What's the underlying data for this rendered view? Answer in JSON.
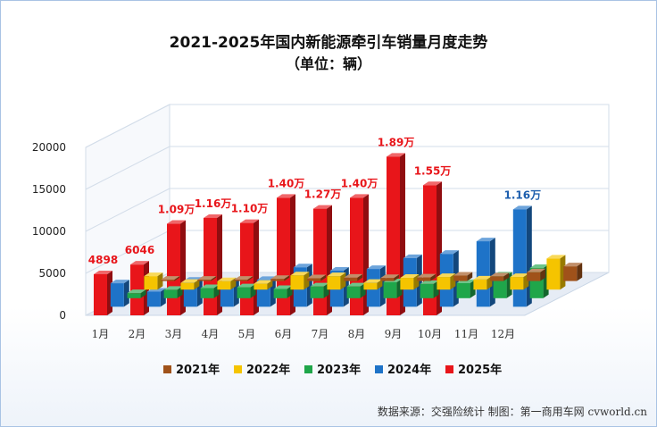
{
  "chart_data": {
    "type": "bar",
    "title": "2021-2025年国内新能源牵引车销量月度走势",
    "subtitle": "（单位：辆）",
    "categories": [
      "1月",
      "2月",
      "3月",
      "4月",
      "5月",
      "6月",
      "7月",
      "8月",
      "9月",
      "10月",
      "11月",
      "12月"
    ],
    "ylim": [
      0,
      20000
    ],
    "yticks": [
      "0",
      "5000",
      "10000",
      "15000",
      "20000"
    ],
    "series": [
      {
        "name": "2021年",
        "color": "#a0521a",
        "values": [
          100,
          120,
          150,
          250,
          330,
          400,
          360,
          420,
          650,
          560,
          1050,
          1750
        ]
      },
      {
        "name": "2022年",
        "color": "#f5c400",
        "values": [
          1600,
          800,
          1000,
          700,
          1700,
          1600,
          800,
          1400,
          1500,
          1200,
          1500,
          3700
        ]
      },
      {
        "name": "2023年",
        "color": "#1fa64a",
        "values": [
          600,
          1000,
          1200,
          1300,
          1100,
          1400,
          1400,
          1900,
          1700,
          1800,
          2700,
          3600
        ]
      },
      {
        "name": "2024年",
        "color": "#1e73c8",
        "values": [
          2800,
          1800,
          3100,
          2900,
          3200,
          4700,
          4300,
          4500,
          5800,
          6300,
          7800,
          11600
        ]
      },
      {
        "name": "2025年",
        "color": "#e8151a",
        "values": [
          4898,
          6046,
          10900,
          11600,
          11000,
          14000,
          12700,
          14000,
          18900,
          15500,
          null,
          null
        ]
      }
    ],
    "data_labels": [
      {
        "series": 4,
        "index": 0,
        "text": "4898"
      },
      {
        "series": 4,
        "index": 1,
        "text": "6046"
      },
      {
        "series": 4,
        "index": 2,
        "text": "1.09万"
      },
      {
        "series": 4,
        "index": 3,
        "text": "1.16万"
      },
      {
        "series": 4,
        "index": 4,
        "text": "1.10万"
      },
      {
        "series": 4,
        "index": 5,
        "text": "1.40万"
      },
      {
        "series": 4,
        "index": 6,
        "text": "1.27万"
      },
      {
        "series": 4,
        "index": 7,
        "text": "1.40万"
      },
      {
        "series": 4,
        "index": 8,
        "text": "1.89万"
      },
      {
        "series": 4,
        "index": 9,
        "text": "1.55万"
      },
      {
        "series": 3,
        "index": 11,
        "text": "1.16万"
      }
    ],
    "legend": [
      "2021年",
      "2022年",
      "2023年",
      "2024年",
      "2025年"
    ],
    "legend_position": "bottom",
    "source": "数据来源：交强险统计 制图：第一商用车网 cvworld.cn"
  }
}
